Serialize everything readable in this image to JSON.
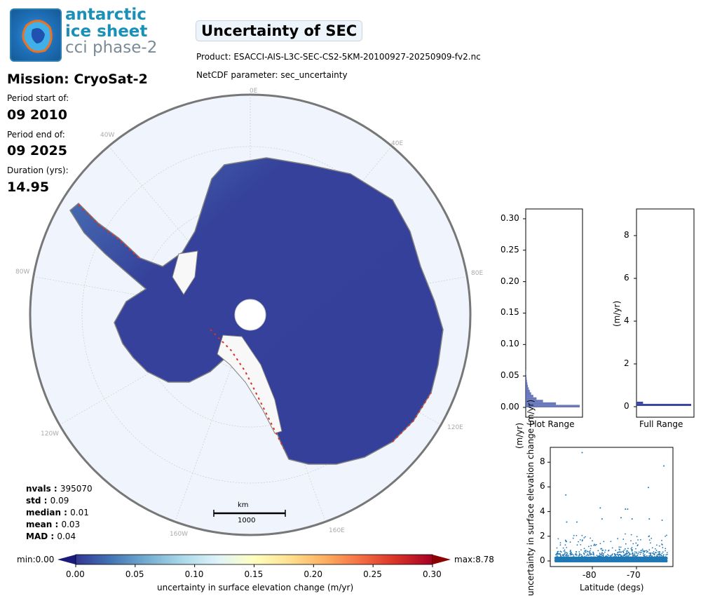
{
  "logo": {
    "line1": "antarctic",
    "line2": "ice sheet",
    "line3": "cci phase-2"
  },
  "header": {
    "title": "Uncertainty of SEC",
    "product": "Product: ESACCI-AIS-L3C-SEC-CS2-5KM-20100927-20250909-fv2.nc",
    "parameter": "NetCDF parameter: sec_uncertainty"
  },
  "info": {
    "mission": "Mission: CryoSat-2",
    "start_label": "Period start of:",
    "start": "09 2010",
    "end_label": "Period end of:",
    "end": "09 2025",
    "duration_label": "Duration (yrs):",
    "duration": "14.95"
  },
  "stats": [
    {
      "k": "nvals",
      "v": "395070"
    },
    {
      "k": "std",
      "v": "0.09"
    },
    {
      "k": "median",
      "v": "0.01"
    },
    {
      "k": "mean",
      "v": "0.03"
    },
    {
      "k": "MAD",
      "v": "0.04"
    }
  ],
  "map": {
    "graticule_labels": [
      "0E",
      "40E",
      "80E",
      "120E",
      "160E",
      "160W",
      "120W",
      "80W",
      "40W"
    ],
    "scalebar_unit": "km",
    "scalebar_value": "1000"
  },
  "colorbar": {
    "min_label": "min:0.00",
    "max_label": "max:8.78",
    "ticks": [
      "0.00",
      "0.05",
      "0.10",
      "0.15",
      "0.20",
      "0.25",
      "0.30"
    ],
    "label": "uncertainty in surface elevation change (m/yr)",
    "range": [
      0,
      0.3
    ],
    "colors": [
      "#313695",
      "#4575b4",
      "#74add1",
      "#abd9e9",
      "#e0f3f8",
      "#ffffbf",
      "#fee090",
      "#fdae61",
      "#f46d43",
      "#d73027",
      "#a50026"
    ],
    "under_color": "#1a1a7a",
    "over_color": "#8b0000"
  },
  "chart_data": [
    {
      "type": "bar",
      "title": "",
      "xlabel": "Plot Range",
      "ylabel": "(m/yr)",
      "orientation": "horizontal",
      "ylim": [
        -0.015,
        0.315
      ],
      "yticks": [
        "0.00",
        "0.05",
        "0.10",
        "0.15",
        "0.20",
        "0.25",
        "0.30"
      ],
      "bin_width": 0.004,
      "bins": [
        0.002,
        0.006,
        0.01,
        0.014,
        0.018,
        0.022,
        0.026,
        0.03,
        0.034,
        0.038,
        0.042,
        0.046,
        0.05,
        0.054,
        0.058
      ],
      "relative_counts": [
        1.0,
        0.56,
        0.32,
        0.2,
        0.14,
        0.1,
        0.075,
        0.055,
        0.04,
        0.03,
        0.022,
        0.016,
        0.011,
        0.007,
        0.004
      ],
      "color": "#5060b0"
    },
    {
      "type": "bar",
      "title": "",
      "xlabel": "Full Range",
      "ylabel": "(m/yr)",
      "orientation": "horizontal",
      "ylim": [
        -0.4,
        9.2
      ],
      "yticks": [
        "0",
        "2",
        "4",
        "6",
        "8"
      ],
      "bin_width": 0.1,
      "bins": [
        0.05,
        0.15
      ],
      "relative_counts": [
        1.0,
        0.12
      ],
      "color": "#3a45a0"
    },
    {
      "type": "scatter",
      "xlabel": "Latitude (degs)",
      "ylabel": "uncertainty in surface elevation change (m/yr)",
      "xlim": [
        -89.5,
        -62.5
      ],
      "ylim": [
        -0.45,
        9.2
      ],
      "xticks": [
        "-80",
        "-70"
      ],
      "yticks": [
        "0",
        "2",
        "4",
        "6",
        "8"
      ],
      "color": "#1f77b4",
      "outliers": [
        {
          "x": -82.3,
          "y": 8.78
        },
        {
          "x": -86.0,
          "y": 5.35
        },
        {
          "x": -67.3,
          "y": 5.95
        },
        {
          "x": -63.8,
          "y": 7.7
        },
        {
          "x": -78.2,
          "y": 4.3
        },
        {
          "x": -72.5,
          "y": 4.2
        },
        {
          "x": -72.0,
          "y": 4.2
        },
        {
          "x": -85.8,
          "y": 3.15
        },
        {
          "x": -83.5,
          "y": 3.15
        },
        {
          "x": -73.5,
          "y": 3.5
        },
        {
          "x": -67.1,
          "y": 3.4
        },
        {
          "x": -64.2,
          "y": 3.3
        },
        {
          "x": -77.8,
          "y": 3.4
        },
        {
          "x": -71.0,
          "y": 3.4
        }
      ]
    }
  ]
}
